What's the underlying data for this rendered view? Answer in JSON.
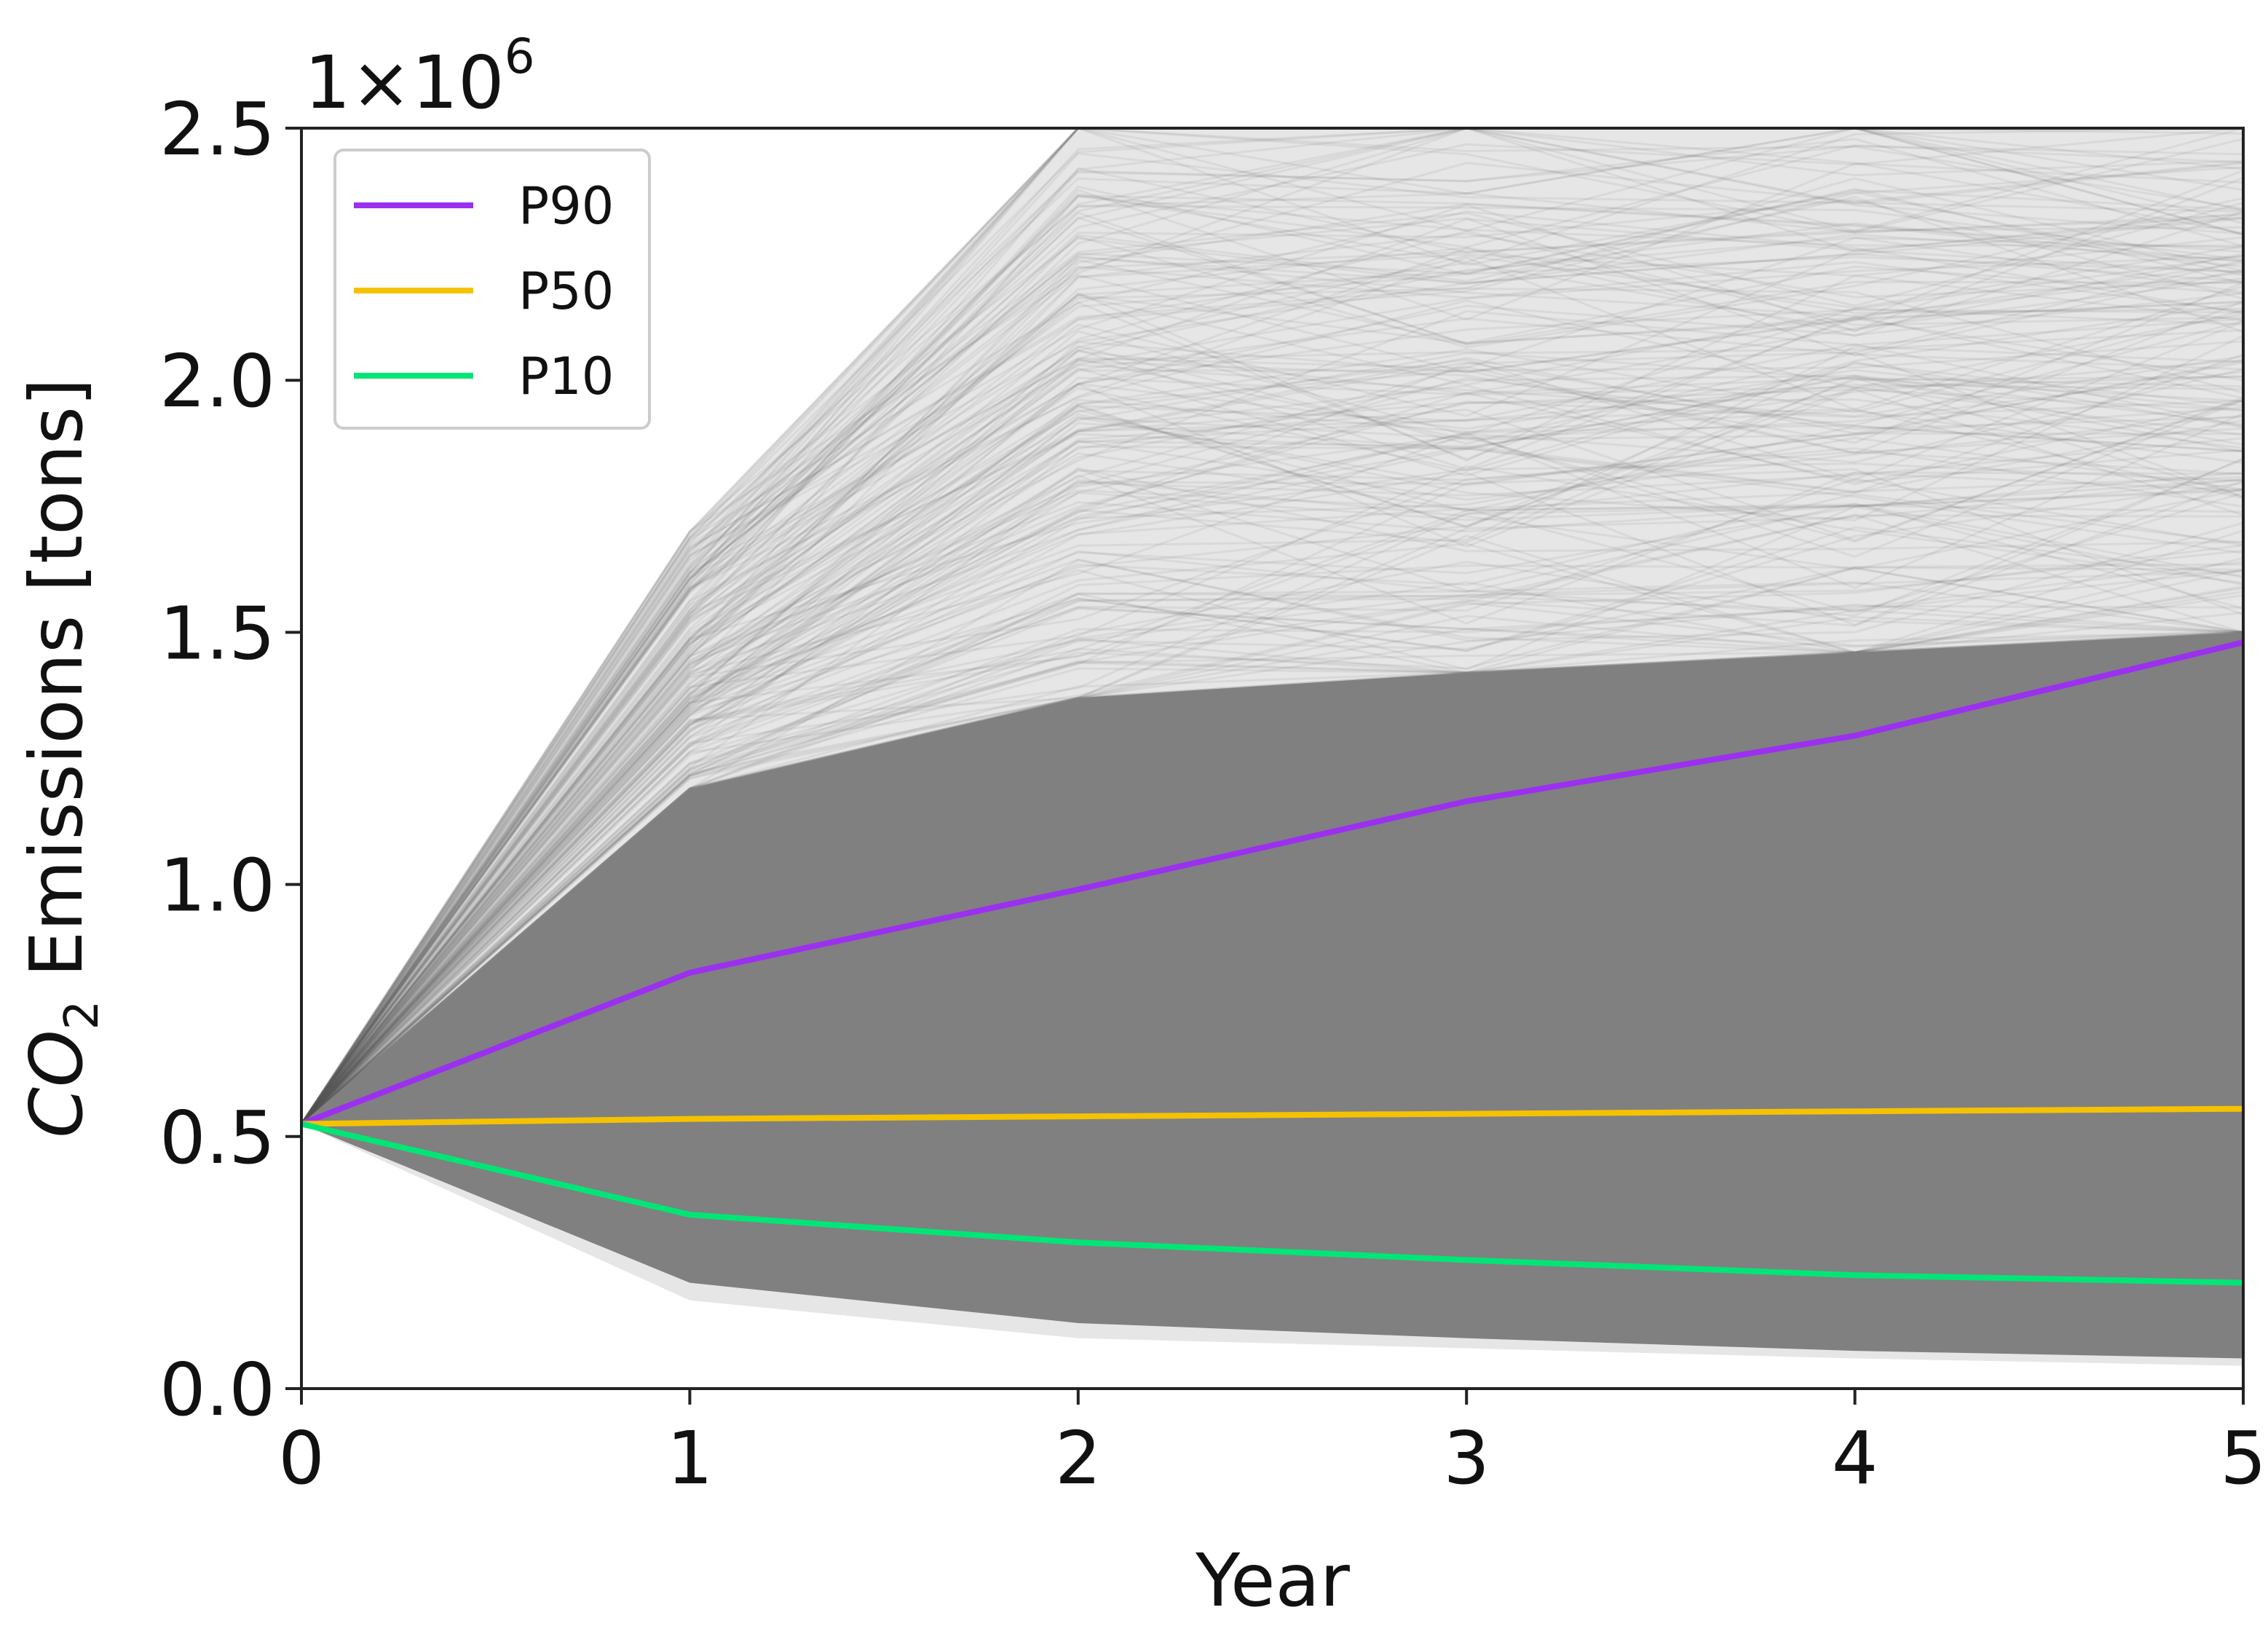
{
  "chart_data": {
    "type": "line",
    "xlabel": "Year",
    "ylabel_main": "CO",
    "ylabel_sub": "2",
    "ylabel_rest": " Emissions [tons]",
    "y_multiplier_base": "1×10",
    "y_multiplier_exp": "6",
    "xlim": [
      0,
      5
    ],
    "ylim": [
      0,
      2500000
    ],
    "x_ticks": [
      0,
      1,
      2,
      3,
      4,
      5
    ],
    "x_tick_labels": [
      "0",
      "1",
      "2",
      "3",
      "4",
      "5"
    ],
    "y_ticks": [
      0,
      500000,
      1000000,
      1500000,
      2000000,
      2500000
    ],
    "y_tick_labels": [
      "0.0",
      "0.5",
      "1.0",
      "1.5",
      "2.0",
      "2.5"
    ],
    "grid": false,
    "legend_position": "top-left",
    "x": [
      0,
      1,
      2,
      3,
      4,
      5
    ],
    "series": [
      {
        "name": "P90",
        "color": "#9b30f0",
        "values": [
          525000,
          825000,
          990000,
          1165000,
          1295000,
          1480000
        ]
      },
      {
        "name": "P50",
        "color": "#f5c200",
        "values": [
          525000,
          535000,
          540000,
          545000,
          550000,
          555000
        ]
      },
      {
        "name": "P10",
        "color": "#00e676",
        "values": [
          525000,
          345000,
          290000,
          255000,
          225000,
          210000
        ]
      }
    ],
    "ensemble": {
      "color": "#808080",
      "dense_upper": [
        525000,
        1190000,
        1370000,
        1420000,
        1460000,
        1500000
      ],
      "dense_lower": [
        525000,
        210000,
        130000,
        100000,
        75000,
        60000
      ],
      "envelope_upper": [
        525000,
        1700000,
        2500000,
        2500000,
        2500000,
        2500000
      ],
      "envelope_lower": [
        525000,
        175000,
        100000,
        80000,
        60000,
        45000
      ]
    }
  }
}
